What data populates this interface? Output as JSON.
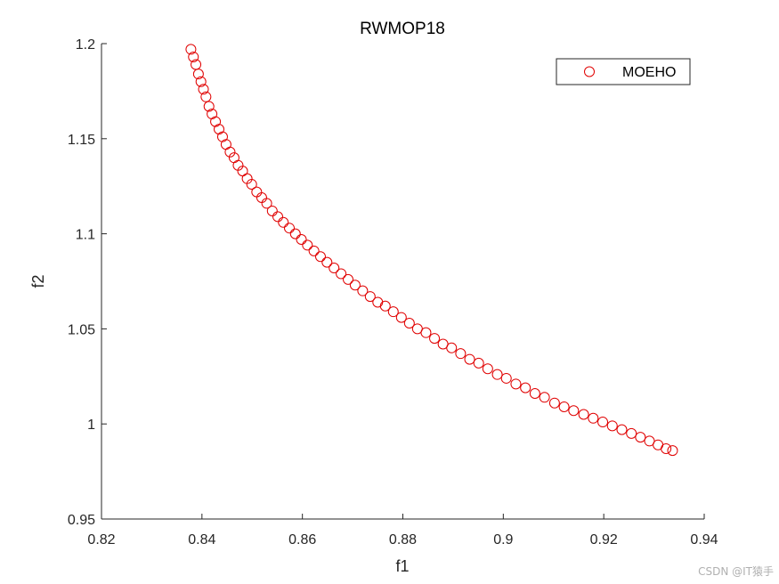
{
  "chart_data": {
    "type": "scatter",
    "title": "RWMOP18",
    "xlabel": "f1",
    "ylabel": "f2",
    "xlim": [
      0.82,
      0.94
    ],
    "ylim": [
      0.95,
      1.2
    ],
    "xticks": [
      0.82,
      0.84,
      0.86,
      0.88,
      0.9,
      0.92,
      0.94
    ],
    "xtick_labels": [
      "0.82",
      "0.84",
      "0.86",
      "0.88",
      "0.9",
      "0.92",
      "0.94"
    ],
    "yticks": [
      0.95,
      1.0,
      1.05,
      1.1,
      1.15,
      1.2
    ],
    "ytick_labels": [
      "0.95",
      "1",
      "1.05",
      "1.1",
      "1.15",
      "1.2"
    ],
    "legend": {
      "position": "top-right",
      "entries": [
        "MOEHO"
      ]
    },
    "grid": false,
    "series": [
      {
        "name": "MOEHO",
        "color": "#e00000",
        "marker": "circle-open",
        "x": [
          0.8378,
          0.8383,
          0.8388,
          0.8393,
          0.8398,
          0.8403,
          0.8408,
          0.8414,
          0.842,
          0.8427,
          0.8434,
          0.8441,
          0.8448,
          0.8456,
          0.8464,
          0.8472,
          0.8481,
          0.849,
          0.8499,
          0.8509,
          0.8519,
          0.8529,
          0.854,
          0.8551,
          0.8562,
          0.8574,
          0.8586,
          0.8598,
          0.861,
          0.8623,
          0.8636,
          0.8649,
          0.8663,
          0.8677,
          0.8691,
          0.8705,
          0.872,
          0.8735,
          0.875,
          0.8765,
          0.8781,
          0.8797,
          0.8813,
          0.8829,
          0.8846,
          0.8863,
          0.888,
          0.8897,
          0.8915,
          0.8933,
          0.8951,
          0.8969,
          0.8988,
          0.9006,
          0.9025,
          0.9044,
          0.9063,
          0.9082,
          0.9102,
          0.9121,
          0.914,
          0.916,
          0.9179,
          0.9198,
          0.9217,
          0.9236,
          0.9255,
          0.9273,
          0.9291,
          0.9308,
          0.9324,
          0.9337
        ],
        "y": [
          1.197,
          1.193,
          1.189,
          1.184,
          1.18,
          1.176,
          1.172,
          1.167,
          1.163,
          1.159,
          1.155,
          1.151,
          1.147,
          1.143,
          1.14,
          1.136,
          1.133,
          1.129,
          1.126,
          1.122,
          1.119,
          1.116,
          1.112,
          1.109,
          1.106,
          1.103,
          1.1,
          1.097,
          1.094,
          1.091,
          1.088,
          1.085,
          1.082,
          1.079,
          1.076,
          1.073,
          1.07,
          1.067,
          1.064,
          1.062,
          1.059,
          1.056,
          1.053,
          1.05,
          1.048,
          1.045,
          1.042,
          1.04,
          1.037,
          1.034,
          1.032,
          1.029,
          1.026,
          1.024,
          1.021,
          1.019,
          1.016,
          1.014,
          1.011,
          1.009,
          1.007,
          1.005,
          1.003,
          1.001,
          0.999,
          0.997,
          0.995,
          0.993,
          0.991,
          0.989,
          0.987,
          0.986
        ]
      }
    ]
  },
  "watermark": "CSDN @IT猿手"
}
